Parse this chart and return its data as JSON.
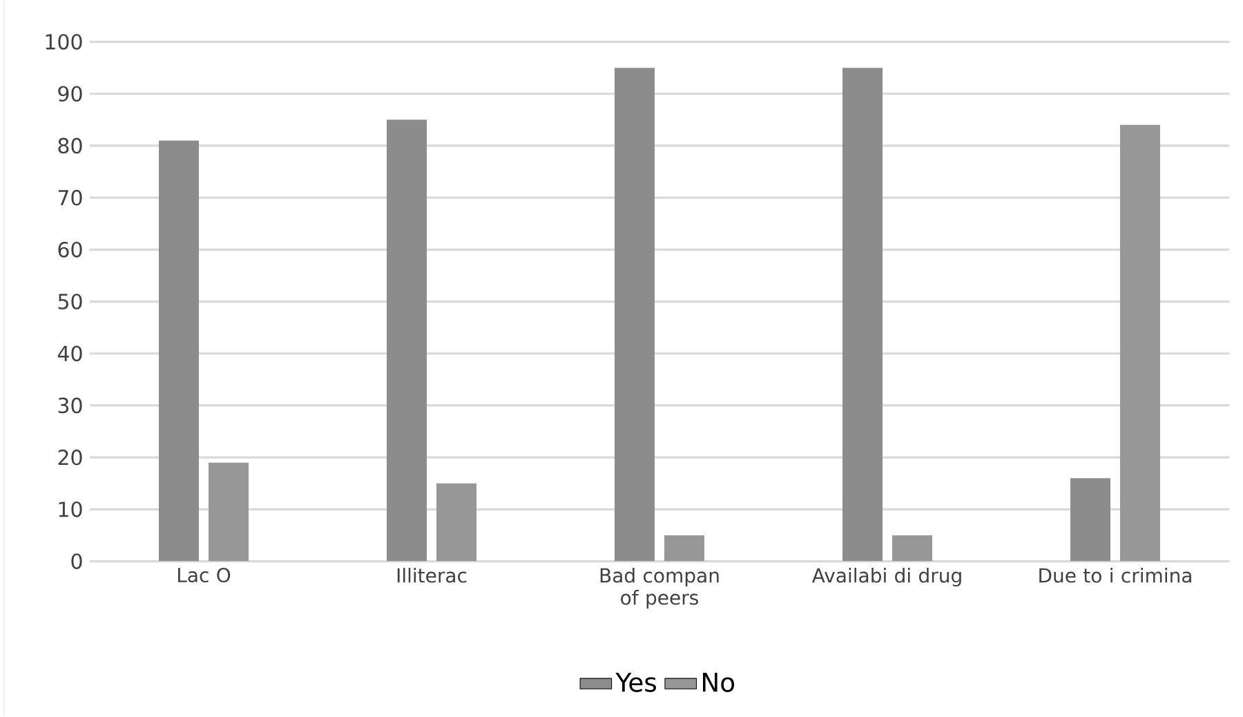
{
  "chart_data": {
    "type": "bar",
    "categories": [
      "Lac O",
      "Illiterac",
      "Bad compan of peers",
      "Availabi di drug",
      "Due to i crimina"
    ],
    "series": [
      {
        "name": "Yes",
        "color": "#8c8c8c",
        "values": [
          81,
          85,
          95,
          95,
          16
        ]
      },
      {
        "name": "No",
        "color": "#979797",
        "values": [
          19,
          15,
          5,
          5,
          84
        ]
      }
    ],
    "ylim": [
      0,
      100
    ],
    "yticks": [
      0,
      10,
      20,
      30,
      40,
      50,
      60,
      70,
      80,
      90,
      100
    ],
    "grid": "y",
    "legend": "bottom"
  }
}
